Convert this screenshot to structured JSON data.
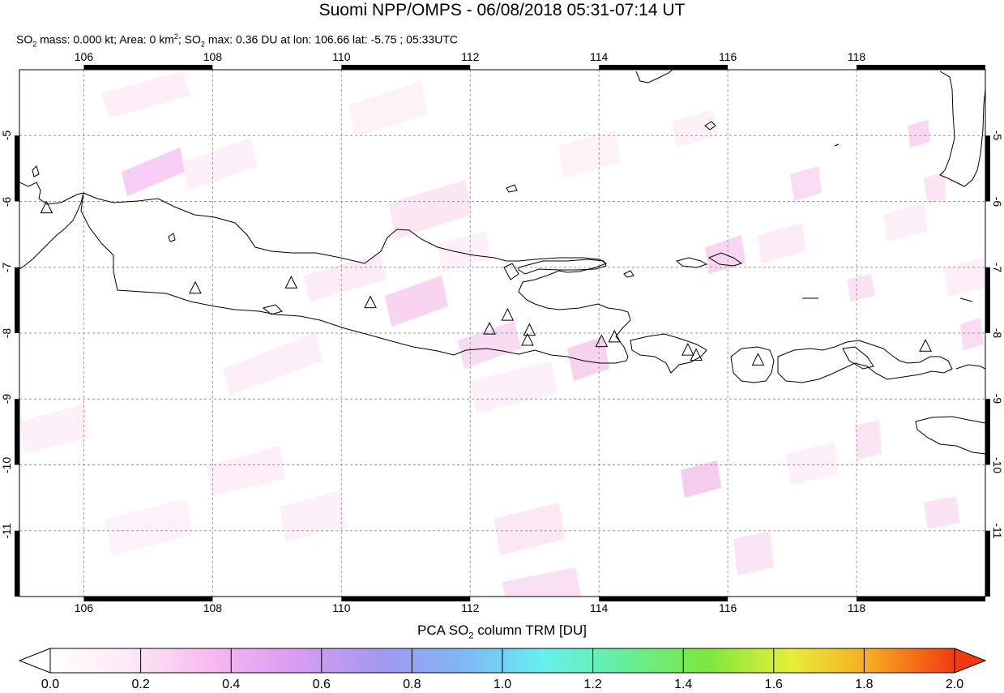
{
  "header": {
    "title": "Suomi NPP/OMPS - 06/08/2018 05:31-07:14 UT",
    "subtitle_parts": {
      "p1": "SO",
      "s1": "2",
      "p2": " mass: 0.000 kt; Area: 0 km",
      "sup": "2",
      "p3": "; SO",
      "s2": "2",
      "p4": " max: 0.36 DU at lon: 106.66 lat: -5.75 ; 05:33UTC"
    }
  },
  "map": {
    "lon_range": [
      105.0,
      120.0
    ],
    "lat_range": [
      -12.0,
      -4.0
    ],
    "x_ticks": [
      "106",
      "108",
      "110",
      "112",
      "114",
      "116",
      "118"
    ],
    "y_ticks": [
      "-5",
      "-6",
      "-7",
      "-8",
      "-9",
      "-10",
      "-11"
    ],
    "grid": true,
    "volcano_markers": [
      {
        "lon": 105.42,
        "lat": -6.1
      },
      {
        "lon": 107.73,
        "lat": -7.32
      },
      {
        "lon": 109.22,
        "lat": -7.24
      },
      {
        "lon": 110.45,
        "lat": -7.54
      },
      {
        "lon": 112.3,
        "lat": -7.94
      },
      {
        "lon": 112.58,
        "lat": -7.73
      },
      {
        "lon": 112.92,
        "lat": -7.96
      },
      {
        "lon": 112.89,
        "lat": -8.11
      },
      {
        "lon": 114.04,
        "lat": -8.13
      },
      {
        "lon": 114.24,
        "lat": -8.06
      },
      {
        "lon": 115.38,
        "lat": -8.26
      },
      {
        "lon": 115.51,
        "lat": -8.34
      },
      {
        "lon": 116.47,
        "lat": -8.41
      },
      {
        "lon": 119.07,
        "lat": -8.2
      }
    ]
  },
  "colorbar": {
    "title_main": "PCA SO",
    "title_sub": "2",
    "title_rest": " column TRM [DU]",
    "min": 0.0,
    "max": 2.0,
    "ticks": [
      "0.0",
      "0.2",
      "0.4",
      "0.6",
      "0.8",
      "1.0",
      "1.2",
      "1.4",
      "1.6",
      "1.8",
      "2.0"
    ],
    "colors": [
      "#ffffff",
      "#fce8f4",
      "#f6b8ee",
      "#d89cf2",
      "#a399f0",
      "#7fb6f5",
      "#66f0ee",
      "#66ee99",
      "#7ee63f",
      "#e6ef38",
      "#f6a820",
      "#f23a10"
    ]
  }
}
